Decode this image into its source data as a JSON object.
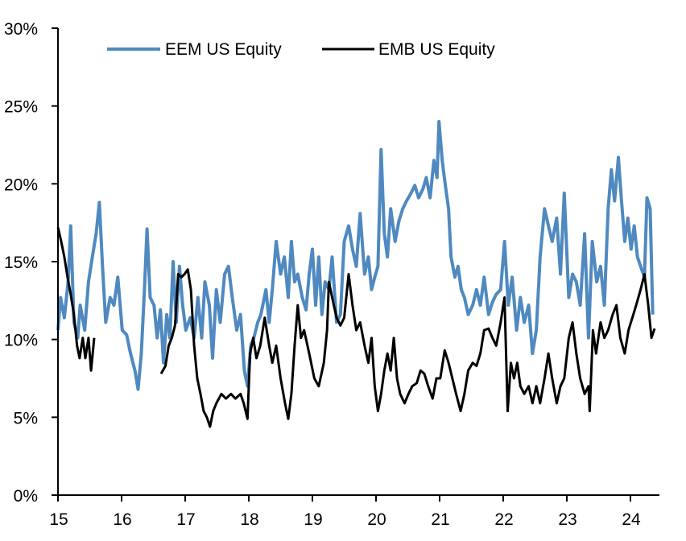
{
  "chart_data": {
    "type": "line",
    "title": "",
    "xlabel": "",
    "ylabel": "",
    "xlim": [
      15,
      24.48
    ],
    "ylim": [
      0,
      30
    ],
    "x_ticks": [
      "15",
      "16",
      "17",
      "18",
      "19",
      "20",
      "21",
      "22",
      "23",
      "24"
    ],
    "y_ticks": [
      "0%",
      "5%",
      "10%",
      "15%",
      "20%",
      "25%",
      "30%"
    ],
    "grid": false,
    "legend_position": "top",
    "series": [
      {
        "name": "EEM US Equity",
        "color": "#4F89C0",
        "points": [
          [
            15.0,
            10.6
          ],
          [
            15.04,
            12.7
          ],
          [
            15.1,
            11.4
          ],
          [
            15.16,
            13.7
          ],
          [
            15.2,
            17.3
          ],
          [
            15.25,
            11.1
          ],
          [
            15.31,
            10.1
          ],
          [
            15.35,
            12.2
          ],
          [
            15.42,
            10.6
          ],
          [
            15.48,
            13.7
          ],
          [
            15.54,
            15.3
          ],
          [
            15.6,
            16.8
          ],
          [
            15.65,
            18.8
          ],
          [
            15.7,
            14.7
          ],
          [
            15.75,
            11.1
          ],
          [
            15.82,
            12.7
          ],
          [
            15.88,
            12.2
          ],
          [
            15.94,
            14.0
          ],
          [
            16.01,
            10.6
          ],
          [
            16.08,
            10.3
          ],
          [
            16.14,
            9.1
          ],
          [
            16.21,
            8.0
          ],
          [
            16.26,
            6.8
          ],
          [
            16.31,
            9.1
          ],
          [
            16.36,
            13.2
          ],
          [
            16.4,
            17.1
          ],
          [
            16.45,
            12.7
          ],
          [
            16.51,
            12.2
          ],
          [
            16.56,
            10.1
          ],
          [
            16.61,
            11.9
          ],
          [
            16.66,
            8.5
          ],
          [
            16.71,
            11.6
          ],
          [
            16.76,
            10.1
          ],
          [
            16.81,
            15.0
          ],
          [
            16.86,
            11.1
          ],
          [
            16.91,
            14.7
          ],
          [
            16.96,
            12.2
          ],
          [
            17.01,
            10.6
          ],
          [
            17.08,
            11.4
          ],
          [
            17.14,
            10.1
          ],
          [
            17.2,
            12.7
          ],
          [
            17.26,
            10.1
          ],
          [
            17.31,
            13.7
          ],
          [
            17.38,
            12.2
          ],
          [
            17.43,
            8.8
          ],
          [
            17.49,
            13.2
          ],
          [
            17.55,
            11.1
          ],
          [
            17.62,
            14.2
          ],
          [
            17.68,
            14.7
          ],
          [
            17.74,
            12.7
          ],
          [
            17.81,
            10.6
          ],
          [
            17.87,
            11.6
          ],
          [
            17.93,
            8.0
          ],
          [
            17.98,
            7.0
          ],
          [
            18.03,
            9.6
          ],
          [
            18.08,
            10.1
          ],
          [
            18.14,
            11.1
          ],
          [
            18.19,
            11.6
          ],
          [
            18.27,
            13.2
          ],
          [
            18.32,
            11.1
          ],
          [
            18.37,
            13.2
          ],
          [
            18.43,
            16.3
          ],
          [
            18.5,
            14.2
          ],
          [
            18.56,
            15.3
          ],
          [
            18.62,
            12.7
          ],
          [
            18.67,
            16.3
          ],
          [
            18.72,
            13.7
          ],
          [
            18.77,
            14.2
          ],
          [
            18.84,
            12.7
          ],
          [
            18.9,
            11.9
          ],
          [
            18.95,
            14.2
          ],
          [
            19.0,
            15.8
          ],
          [
            19.05,
            12.2
          ],
          [
            19.1,
            15.3
          ],
          [
            19.15,
            11.6
          ],
          [
            19.2,
            13.7
          ],
          [
            19.26,
            13.2
          ],
          [
            19.31,
            15.3
          ],
          [
            19.38,
            11.1
          ],
          [
            19.44,
            11.6
          ],
          [
            19.5,
            16.3
          ],
          [
            19.57,
            17.3
          ],
          [
            19.63,
            15.8
          ],
          [
            19.69,
            14.7
          ],
          [
            19.75,
            18.1
          ],
          [
            19.82,
            14.2
          ],
          [
            19.88,
            15.3
          ],
          [
            19.93,
            13.2
          ],
          [
            19.98,
            14.0
          ],
          [
            20.03,
            14.7
          ],
          [
            20.08,
            22.2
          ],
          [
            20.13,
            16.8
          ],
          [
            20.18,
            15.3
          ],
          [
            20.23,
            18.4
          ],
          [
            20.3,
            16.3
          ],
          [
            20.36,
            17.6
          ],
          [
            20.42,
            18.4
          ],
          [
            20.48,
            18.9
          ],
          [
            20.55,
            19.4
          ],
          [
            20.61,
            19.9
          ],
          [
            20.67,
            19.1
          ],
          [
            20.74,
            19.7
          ],
          [
            20.79,
            20.4
          ],
          [
            20.85,
            19.1
          ],
          [
            20.91,
            21.5
          ],
          [
            20.96,
            20.4
          ],
          [
            20.99,
            24.0
          ],
          [
            21.04,
            21.5
          ],
          [
            21.09,
            19.9
          ],
          [
            21.14,
            18.4
          ],
          [
            21.18,
            15.3
          ],
          [
            21.24,
            14.0
          ],
          [
            21.29,
            14.7
          ],
          [
            21.34,
            13.2
          ],
          [
            21.39,
            12.7
          ],
          [
            21.45,
            11.6
          ],
          [
            21.52,
            12.2
          ],
          [
            21.58,
            13.2
          ],
          [
            21.64,
            12.2
          ],
          [
            21.7,
            14.0
          ],
          [
            21.77,
            11.6
          ],
          [
            21.83,
            12.4
          ],
          [
            21.89,
            12.9
          ],
          [
            21.96,
            13.2
          ],
          [
            22.02,
            16.3
          ],
          [
            22.08,
            12.2
          ],
          [
            22.14,
            14.0
          ],
          [
            22.21,
            10.6
          ],
          [
            22.27,
            12.7
          ],
          [
            22.33,
            11.1
          ],
          [
            22.4,
            12.2
          ],
          [
            22.46,
            9.1
          ],
          [
            22.52,
            10.6
          ],
          [
            22.58,
            15.3
          ],
          [
            22.65,
            18.4
          ],
          [
            22.71,
            17.3
          ],
          [
            22.77,
            16.3
          ],
          [
            22.84,
            17.8
          ],
          [
            22.9,
            14.2
          ],
          [
            22.96,
            19.4
          ],
          [
            23.03,
            12.7
          ],
          [
            23.09,
            14.2
          ],
          [
            23.15,
            13.7
          ],
          [
            23.21,
            12.2
          ],
          [
            23.28,
            16.8
          ],
          [
            23.34,
            10.1
          ],
          [
            23.4,
            16.3
          ],
          [
            23.47,
            13.7
          ],
          [
            23.53,
            14.7
          ],
          [
            23.59,
            12.2
          ],
          [
            23.65,
            18.4
          ],
          [
            23.7,
            20.9
          ],
          [
            23.75,
            18.9
          ],
          [
            23.81,
            21.7
          ],
          [
            23.86,
            18.9
          ],
          [
            23.91,
            16.3
          ],
          [
            23.96,
            17.8
          ],
          [
            24.01,
            15.8
          ],
          [
            24.06,
            17.3
          ],
          [
            24.11,
            15.3
          ],
          [
            24.16,
            14.7
          ],
          [
            24.22,
            14.0
          ],
          [
            24.26,
            19.1
          ],
          [
            24.31,
            18.4
          ],
          [
            24.35,
            11.6
          ]
        ]
      },
      {
        "name": "EMB US Equity",
        "color": "#000000",
        "points": [
          [
            15.0,
            17.2
          ],
          [
            15.05,
            16.3
          ],
          [
            15.1,
            15.3
          ],
          [
            15.15,
            14.0
          ],
          [
            15.2,
            12.9
          ],
          [
            15.25,
            11.6
          ],
          [
            15.3,
            9.6
          ],
          [
            15.34,
            8.8
          ],
          [
            15.39,
            10.1
          ],
          [
            15.43,
            8.8
          ],
          [
            15.48,
            10.1
          ],
          [
            15.52,
            8.0
          ],
          [
            15.57,
            10.1
          ],
          null,
          [
            16.62,
            7.8
          ],
          [
            16.69,
            8.3
          ],
          [
            16.74,
            9.6
          ],
          [
            16.79,
            10.1
          ],
          [
            16.84,
            10.9
          ],
          [
            16.89,
            14.2
          ],
          [
            16.94,
            14.0
          ],
          [
            16.99,
            14.2
          ],
          [
            17.04,
            14.5
          ],
          [
            17.09,
            13.2
          ],
          [
            17.14,
            9.6
          ],
          [
            17.19,
            7.5
          ],
          [
            17.24,
            6.5
          ],
          [
            17.29,
            5.4
          ],
          [
            17.34,
            5.0
          ],
          [
            17.39,
            4.4
          ],
          [
            17.44,
            5.4
          ],
          [
            17.49,
            5.9
          ],
          [
            17.57,
            6.5
          ],
          [
            17.64,
            6.2
          ],
          [
            17.72,
            6.5
          ],
          [
            17.79,
            6.2
          ],
          [
            17.87,
            6.5
          ],
          [
            17.92,
            5.9
          ],
          [
            17.98,
            4.9
          ],
          [
            18.02,
            9.1
          ],
          [
            18.07,
            10.1
          ],
          [
            18.12,
            8.8
          ],
          [
            18.18,
            9.6
          ],
          [
            18.25,
            11.4
          ],
          [
            18.32,
            9.6
          ],
          [
            18.37,
            8.5
          ],
          [
            18.43,
            9.6
          ],
          [
            18.5,
            7.5
          ],
          [
            18.57,
            5.9
          ],
          [
            18.62,
            4.9
          ],
          [
            18.67,
            6.5
          ],
          [
            18.72,
            9.6
          ],
          [
            18.77,
            12.2
          ],
          [
            18.82,
            10.1
          ],
          [
            18.87,
            10.6
          ],
          [
            18.95,
            9.1
          ],
          [
            19.03,
            7.5
          ],
          [
            19.1,
            7.0
          ],
          [
            19.18,
            8.5
          ],
          [
            19.23,
            10.6
          ],
          [
            19.26,
            13.7
          ],
          [
            19.31,
            12.7
          ],
          [
            19.38,
            11.4
          ],
          [
            19.44,
            10.9
          ],
          [
            19.5,
            11.4
          ],
          [
            19.57,
            14.2
          ],
          [
            19.63,
            12.2
          ],
          [
            19.69,
            10.6
          ],
          [
            19.75,
            11.1
          ],
          [
            19.82,
            9.6
          ],
          [
            19.88,
            8.5
          ],
          [
            19.93,
            10.1
          ],
          [
            19.98,
            7.0
          ],
          [
            20.03,
            5.4
          ],
          [
            20.08,
            6.5
          ],
          [
            20.13,
            8.0
          ],
          [
            20.18,
            9.1
          ],
          [
            20.23,
            8.0
          ],
          [
            20.28,
            10.1
          ],
          [
            20.33,
            7.5
          ],
          [
            20.38,
            6.5
          ],
          [
            20.45,
            5.9
          ],
          [
            20.51,
            6.5
          ],
          [
            20.57,
            7.0
          ],
          [
            20.64,
            7.2
          ],
          [
            20.7,
            8.0
          ],
          [
            20.76,
            7.8
          ],
          [
            20.82,
            7.0
          ],
          [
            20.89,
            6.2
          ],
          [
            20.95,
            7.5
          ],
          [
            21.01,
            7.5
          ],
          [
            21.08,
            9.3
          ],
          [
            21.14,
            8.5
          ],
          [
            21.2,
            7.5
          ],
          [
            21.26,
            6.5
          ],
          [
            21.33,
            5.4
          ],
          [
            21.39,
            6.5
          ],
          [
            21.45,
            8.0
          ],
          [
            21.52,
            8.5
          ],
          [
            21.58,
            8.3
          ],
          [
            21.64,
            9.1
          ],
          [
            21.7,
            10.6
          ],
          [
            21.77,
            10.7
          ],
          [
            21.83,
            10.1
          ],
          [
            21.89,
            9.6
          ],
          [
            21.96,
            11.1
          ],
          [
            22.02,
            12.7
          ],
          [
            22.07,
            5.4
          ],
          [
            22.12,
            8.5
          ],
          [
            22.17,
            7.5
          ],
          [
            22.22,
            8.5
          ],
          [
            22.27,
            7.0
          ],
          [
            22.33,
            6.5
          ],
          [
            22.4,
            7.0
          ],
          [
            22.46,
            5.9
          ],
          [
            22.52,
            7.0
          ],
          [
            22.58,
            5.9
          ],
          [
            22.65,
            7.5
          ],
          [
            22.71,
            9.1
          ],
          [
            22.77,
            7.5
          ],
          [
            22.84,
            5.9
          ],
          [
            22.9,
            7.0
          ],
          [
            22.96,
            7.5
          ],
          [
            23.03,
            10.1
          ],
          [
            23.09,
            11.1
          ],
          [
            23.15,
            9.1
          ],
          [
            23.21,
            7.5
          ],
          [
            23.28,
            6.5
          ],
          [
            23.34,
            7.0
          ],
          [
            23.36,
            5.4
          ],
          [
            23.41,
            10.6
          ],
          [
            23.46,
            9.1
          ],
          [
            23.53,
            11.1
          ],
          [
            23.59,
            10.1
          ],
          [
            23.65,
            10.6
          ],
          [
            23.72,
            11.6
          ],
          [
            23.78,
            12.2
          ],
          [
            23.84,
            10.1
          ],
          [
            23.91,
            9.1
          ],
          [
            23.97,
            10.6
          ],
          [
            24.03,
            11.4
          ],
          [
            24.09,
            12.2
          ],
          [
            24.16,
            13.2
          ],
          [
            24.22,
            14.2
          ],
          [
            24.28,
            12.2
          ],
          [
            24.33,
            10.1
          ],
          [
            24.38,
            10.7
          ]
        ]
      }
    ]
  }
}
